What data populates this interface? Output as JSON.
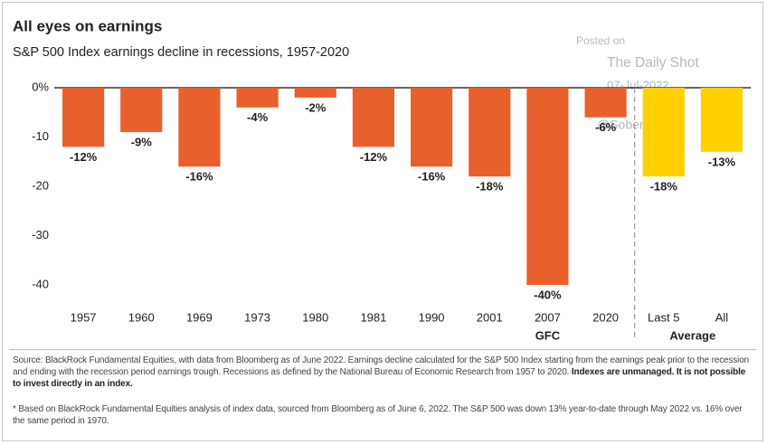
{
  "chart_data": {
    "type": "bar",
    "title": "All eyes on earnings",
    "subtitle": "S&P 500 Index earnings decline in recessions, 1957-2020",
    "categories": [
      "1957",
      "1960",
      "1969",
      "1973",
      "1980",
      "1981",
      "1990",
      "2001",
      "2007",
      "2020",
      "Last 5",
      "All"
    ],
    "values": [
      -12,
      -9,
      -16,
      -4,
      -2,
      -12,
      -16,
      -18,
      -40,
      -6,
      -18,
      -13
    ],
    "value_labels": [
      "-12%",
      "-9%",
      "-16%",
      "-4%",
      "-2%",
      "-12%",
      "-16%",
      "-18%",
      "-40%",
      "-6%",
      "-18%",
      "-13%"
    ],
    "colors": [
      "#e8612c",
      "#e8612c",
      "#e8612c",
      "#e8612c",
      "#e8612c",
      "#e8612c",
      "#e8612c",
      "#e8612c",
      "#e8612c",
      "#e8612c",
      "#ffd100",
      "#ffd100"
    ],
    "group_labels": [
      "GFC",
      "Average"
    ],
    "ylim": [
      -42,
      0
    ],
    "yticks": [
      {
        "value": 0,
        "label": "0%"
      },
      -10,
      -20,
      -30,
      -40
    ],
    "grid": false,
    "watermark": [
      "Posted on",
      "The Daily Shot",
      "07-Jul-2022",
      "@SoberLook"
    ],
    "source": "Source: BlackRock Fundamental Equities, with data from Bloomberg as of June 2022. Earnings decline calculated for the S&P 500 Index starting from the earnings peak prior to the recession and ending with the recession period earnings trough. Recessions as defined by the National Bureau of Economic Research from 1957 to 2020.",
    "source_bold": "Indexes are unmanaged. It is not possible to invest directly in an index.",
    "footnote": "* Based on BlackRock Fundamental Equities analysis of index data, sourced from Bloomberg as of June 6, 2022. The S&P 500 was down 13% year-to-date through May 2022 vs. 16% over the same period in 1970."
  }
}
